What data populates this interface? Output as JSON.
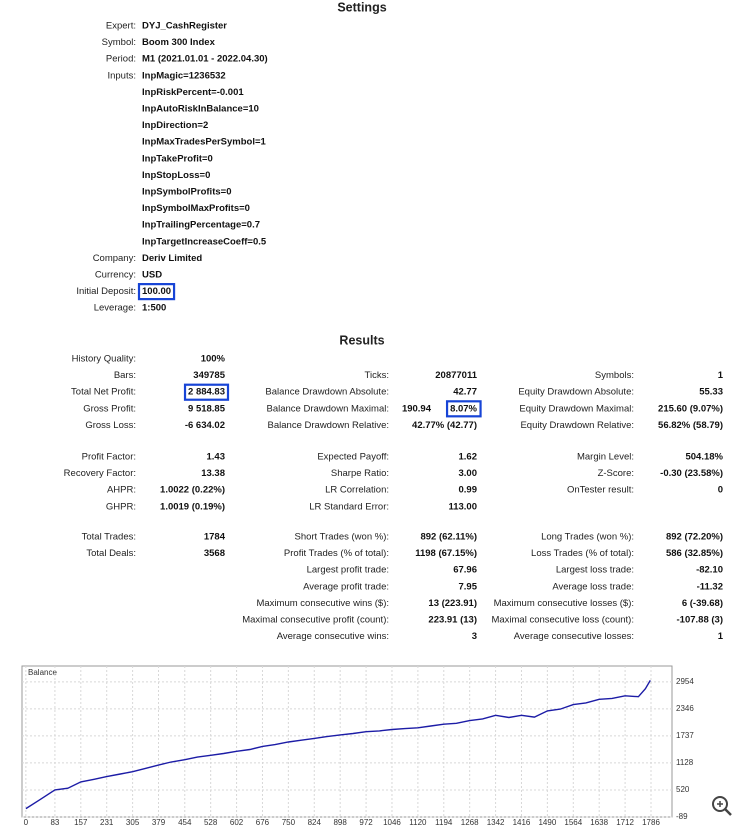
{
  "settings": {
    "title": "Settings",
    "rows": [
      {
        "label": "Expert:",
        "value": "DYJ_CashRegister"
      },
      {
        "label": "Symbol:",
        "value": "Boom 300 Index"
      },
      {
        "label": "Period:",
        "value": "M1 (2021.01.01 - 2022.04.30)"
      },
      {
        "label": "Inputs:",
        "values": [
          "InpMagic=1236532",
          "InpRiskPercent=-0.001",
          "InpAutoRiskInBalance=10",
          "InpDirection=2",
          "InpMaxTradesPerSymbol=1",
          "InpTakeProfit=0",
          "InpStopLoss=0",
          "InpSymbolProfits=0",
          "InpSymbolMaxProfits=0",
          "InpTrailingPercentage=0.7",
          "InpTargetIncreaseCoeff=0.5"
        ]
      },
      {
        "label": "Company:",
        "value": "Deriv Limited"
      },
      {
        "label": "Currency:",
        "value": "USD"
      },
      {
        "label": "Initial Deposit:",
        "value": "100.00",
        "boxed": true
      },
      {
        "label": "Leverage:",
        "value": "1:500"
      }
    ]
  },
  "results": {
    "title": "Results",
    "groups": [
      [
        [
          {
            "label": "History Quality:",
            "value": "100%"
          },
          null,
          null
        ],
        [
          {
            "label": "Bars:",
            "value": "349785"
          },
          {
            "label": "Ticks:",
            "value": "20877011"
          },
          {
            "label": "Symbols:",
            "value": "1"
          }
        ],
        [
          {
            "label": "Total Net Profit:",
            "value": "2 884.83",
            "boxed": true
          },
          {
            "label": "Balance Drawdown Absolute:",
            "value": "42.77"
          },
          {
            "label": "Equity Drawdown Absolute:",
            "value": "55.33"
          }
        ],
        [
          {
            "label": "Gross Profit:",
            "value": "9 518.85"
          },
          {
            "label": "Balance Drawdown Maximal:",
            "value": "190.94",
            "extra": "8.07%",
            "boxed": true
          },
          {
            "label": "Equity Drawdown Maximal:",
            "value": "215.60 (9.07%)"
          }
        ],
        [
          {
            "label": "Gross Loss:",
            "value": "-6 634.02"
          },
          {
            "label": "Balance Drawdown Relative:",
            "value": "42.77% (42.77)"
          },
          {
            "label": "Equity Drawdown Relative:",
            "value": "56.82% (58.79)"
          }
        ]
      ],
      [
        [
          {
            "label": "Profit Factor:",
            "value": "1.43"
          },
          {
            "label": "Expected Payoff:",
            "value": "1.62"
          },
          {
            "label": "Margin Level:",
            "value": "504.18%"
          }
        ],
        [
          {
            "label": "Recovery Factor:",
            "value": "13.38"
          },
          {
            "label": "Sharpe Ratio:",
            "value": "3.00"
          },
          {
            "label": "Z-Score:",
            "value": "-0.30 (23.58%)"
          }
        ],
        [
          {
            "label": "AHPR:",
            "value": "1.0022 (0.22%)"
          },
          {
            "label": "LR Correlation:",
            "value": "0.99"
          },
          {
            "label": "OnTester result:",
            "value": "0"
          }
        ],
        [
          {
            "label": "GHPR:",
            "value": "1.0019 (0.19%)"
          },
          {
            "label": "LR Standard Error:",
            "value": "113.00"
          },
          null
        ]
      ],
      [
        [
          {
            "label": "Total Trades:",
            "value": "1784"
          },
          {
            "label": "Short Trades (won %):",
            "value": "892 (62.11%)"
          },
          {
            "label": "Long Trades (won %):",
            "value": "892 (72.20%)"
          }
        ],
        [
          {
            "label": "Total Deals:",
            "value": "3568"
          },
          {
            "label": "Profit Trades (% of total):",
            "value": "1198 (67.15%)"
          },
          {
            "label": "Loss Trades (% of total):",
            "value": "586 (32.85%)"
          }
        ],
        [
          null,
          {
            "label": "Largest profit trade:",
            "value": "67.96"
          },
          {
            "label": "Largest loss trade:",
            "value": "-82.10"
          }
        ],
        [
          null,
          {
            "label": "Average profit trade:",
            "value": "7.95"
          },
          {
            "label": "Average loss trade:",
            "value": "-11.32"
          }
        ],
        [
          null,
          {
            "label": "Maximum consecutive wins ($):",
            "value": "13 (223.91)"
          },
          {
            "label": "Maximum consecutive losses ($):",
            "value": "6 (-39.68)"
          }
        ],
        [
          null,
          {
            "label": "Maximal consecutive profit (count):",
            "value": "223.91 (13)"
          },
          {
            "label": "Maximal consecutive loss (count):",
            "value": "-107.88 (3)"
          }
        ],
        [
          null,
          {
            "label": "Average consecutive wins:",
            "value": "3"
          },
          {
            "label": "Average consecutive losses:",
            "value": "1"
          }
        ]
      ]
    ]
  },
  "chart_data": {
    "type": "line",
    "title": "Balance",
    "x": [
      0,
      40,
      83,
      120,
      157,
      195,
      231,
      270,
      305,
      340,
      379,
      415,
      454,
      490,
      528,
      565,
      602,
      640,
      676,
      712,
      750,
      787,
      824,
      860,
      898,
      935,
      972,
      1010,
      1046,
      1083,
      1120,
      1157,
      1194,
      1230,
      1268,
      1305,
      1342,
      1380,
      1416,
      1453,
      1490,
      1527,
      1564,
      1600,
      1638,
      1675,
      1712,
      1750,
      1770,
      1784
    ],
    "series": [
      {
        "color": "#1c1ca6",
        "values": [
          100,
          300,
          520,
          560,
          700,
          760,
          820,
          880,
          930,
          1000,
          1080,
          1150,
          1200,
          1260,
          1300,
          1340,
          1390,
          1430,
          1500,
          1540,
          1600,
          1640,
          1680,
          1720,
          1760,
          1790,
          1830,
          1850,
          1880,
          1900,
          1920,
          1960,
          2000,
          2020,
          2080,
          2120,
          2200,
          2150,
          2200,
          2160,
          2300,
          2340,
          2440,
          2480,
          2560,
          2580,
          2640,
          2620,
          2800,
          2985
        ]
      }
    ],
    "xlim": [
      -11,
      1846
    ],
    "ylim": [
      -89,
      3310
    ],
    "xticks": [
      0,
      83,
      157,
      231,
      305,
      379,
      454,
      528,
      602,
      676,
      750,
      824,
      898,
      972,
      1046,
      1120,
      1194,
      1268,
      1342,
      1416,
      1490,
      1564,
      1638,
      1712,
      1786
    ],
    "yticks": [
      -89,
      520,
      1128,
      1737,
      2346,
      2954
    ],
    "grid": true
  }
}
